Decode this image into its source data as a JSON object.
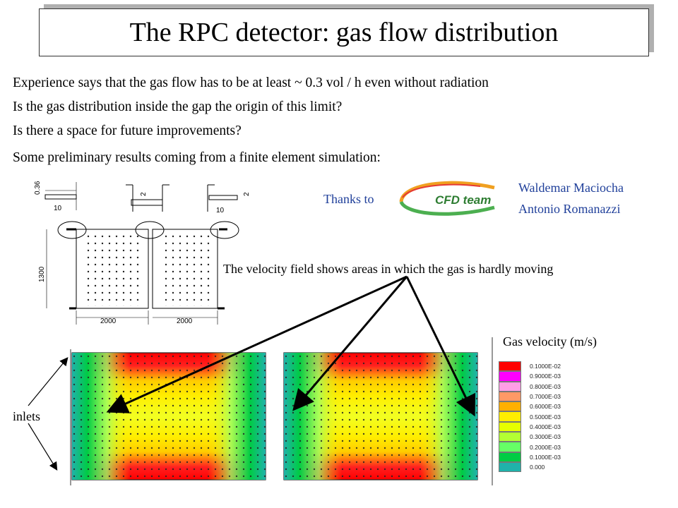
{
  "slide": {
    "title": "The RPC detector: gas flow distribution",
    "paragraphs": [
      "Experience says that the gas flow has to be at least ~ 0.3 vol / h even without radiation",
      "Is the gas distribution inside the gap the origin of this limit?",
      "Is there a space for future improvements?",
      "Some preliminary results coming from a finite element simulation:"
    ],
    "thanks_label": "Thanks to",
    "logo_text": "CFD team",
    "credits": [
      "Waldemar Maciocha",
      "Antonio Romanazzi"
    ],
    "velocity_note": "The velocity field shows areas in which the gas is hardly moving",
    "legend_title": "Gas velocity (m/s)",
    "inlets_label": "inlets"
  },
  "drawing": {
    "dims": [
      "0.36",
      "10",
      "2",
      "2",
      "10",
      "1300",
      "2000",
      "2000"
    ]
  },
  "legend": {
    "items": [
      {
        "label": "0.1000E-02",
        "color": "#ff0000"
      },
      {
        "label": "0.9000E-03",
        "color": "#ff00ff"
      },
      {
        "label": "0.8000E-03",
        "color": "#ff9ee6"
      },
      {
        "label": "0.7000E-03",
        "color": "#ff9966"
      },
      {
        "label": "0.6000E-03",
        "color": "#ffb000"
      },
      {
        "label": "0.5000E-03",
        "color": "#ffee00"
      },
      {
        "label": "0.4000E-03",
        "color": "#e6ff00"
      },
      {
        "label": "0.3000E-03",
        "color": "#b3ff33"
      },
      {
        "label": "0.2000E-03",
        "color": "#66ff66"
      },
      {
        "label": "0.1000E-03",
        "color": "#00cc44"
      },
      {
        "label": "0.000",
        "color": "#20b2aa"
      }
    ]
  }
}
